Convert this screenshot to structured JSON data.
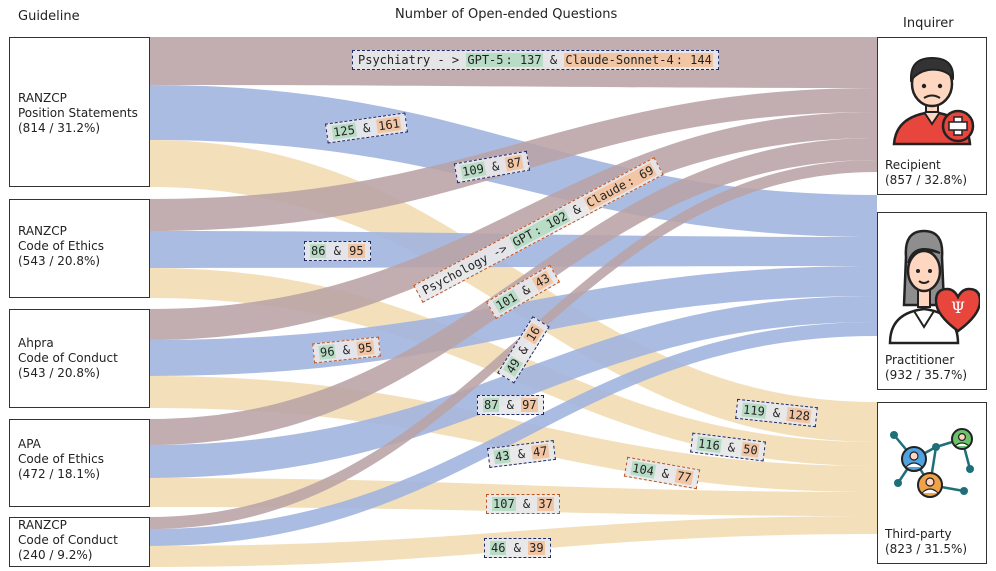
{
  "headers": {
    "left": "Guideline",
    "center": "Number of Open-ended Questions",
    "right": "Inquirer"
  },
  "colors": {
    "recipient_flow": "#b9a3a6",
    "practitioner_flow": "#9fb3df",
    "thirdparty_flow": "#f1dcb2",
    "gpt_highlight": "#b9dcc6",
    "claude_highlight": "#f2c6a4",
    "navy_border": "#1e2a66",
    "orange_border": "#c0541e"
  },
  "sources": [
    {
      "name": "RANZCP\nPosition Statements",
      "stat": "(814 / 31.2%)"
    },
    {
      "name": "RANZCP\nCode of Ethics",
      "stat": "(543 / 20.8%)"
    },
    {
      "name": "Ahpra\nCode of Conduct",
      "stat": "(543 / 20.8%)"
    },
    {
      "name": "APA\nCode of Ethics",
      "stat": "(472 / 18.1%)"
    },
    {
      "name": "RANZCP\nCode of Conduct",
      "stat": "(240 / 9.2%)"
    }
  ],
  "targets": [
    {
      "name": "Recipient",
      "stat": "(857 / 32.8%)",
      "icon": "patient-icon"
    },
    {
      "name": "Practitioner",
      "stat": "(932 / 35.7%)",
      "icon": "psychologist-icon"
    },
    {
      "name": "Third-party",
      "stat": "(823 / 31.5%)",
      "icon": "network-icon"
    }
  ],
  "flow_labels": [
    {
      "prefix": "Psychiatry - > ",
      "g_pre": "GPT-5",
      "g": ": 137",
      "mid": " & ",
      "o_pre": "Claude-Sonnet-4",
      "o": ": 144",
      "border": "navy"
    },
    {
      "prefix": "",
      "g_pre": "",
      "g": "125",
      "mid": " & ",
      "o_pre": "",
      "o": "161",
      "border": "navy"
    },
    {
      "prefix": "",
      "g_pre": "",
      "g": "109",
      "mid": " & ",
      "o_pre": "",
      "o": "87",
      "border": "navy"
    },
    {
      "prefix": "Psychology -> ",
      "g_pre": "GPT",
      "g": ": 102",
      "mid": " & ",
      "o_pre": "Claude",
      "o": ": 69",
      "border": "orange"
    },
    {
      "prefix": "",
      "g_pre": "",
      "g": "86",
      "mid": " & ",
      "o_pre": "",
      "o": "95",
      "border": "navy"
    },
    {
      "prefix": "",
      "g_pre": "",
      "g": "101",
      "mid": " & ",
      "o_pre": "",
      "o": "43",
      "border": "orange"
    },
    {
      "prefix": "",
      "g_pre": "",
      "g": "96",
      "mid": " & ",
      "o_pre": "",
      "o": "95",
      "border": "orange"
    },
    {
      "prefix": "",
      "g_pre": "",
      "g": "49",
      "mid": " & ",
      "o_pre": "",
      "o": "16",
      "border": "navy"
    },
    {
      "prefix": "",
      "g_pre": "",
      "g": "87",
      "mid": " & ",
      "o_pre": "",
      "o": "97",
      "border": "navy"
    },
    {
      "prefix": "",
      "g_pre": "",
      "g": "119",
      "mid": " & ",
      "o_pre": "",
      "o": "128",
      "border": "navy"
    },
    {
      "prefix": "",
      "g_pre": "",
      "g": "116",
      "mid": " & ",
      "o_pre": "",
      "o": "50",
      "border": "navy"
    },
    {
      "prefix": "",
      "g_pre": "",
      "g": "43",
      "mid": " & ",
      "o_pre": "",
      "o": "47",
      "border": "navy"
    },
    {
      "prefix": "",
      "g_pre": "",
      "g": "104",
      "mid": " & ",
      "o_pre": "",
      "o": "77",
      "border": "orange"
    },
    {
      "prefix": "",
      "g_pre": "",
      "g": "107",
      "mid": " & ",
      "o_pre": "",
      "o": "37",
      "border": "orange"
    },
    {
      "prefix": "",
      "g_pre": "",
      "g": "46",
      "mid": " & ",
      "o_pre": "",
      "o": "39",
      "border": "navy"
    }
  ]
}
